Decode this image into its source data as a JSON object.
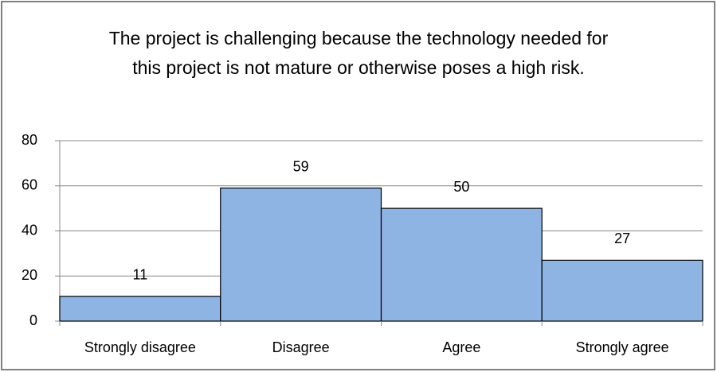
{
  "chart_data": {
    "type": "bar",
    "title": "The project is challenging because the technology needed for this project is not mature or otherwise poses a high risk.",
    "categories": [
      "Strongly disagree",
      "Disagree",
      "Agree",
      "Strongly agree"
    ],
    "values": [
      11,
      59,
      50,
      27
    ],
    "color": "#8eb4e3",
    "ylim": [
      0,
      80
    ],
    "yticks": [
      0,
      20,
      40,
      60,
      80
    ],
    "grid": true
  }
}
